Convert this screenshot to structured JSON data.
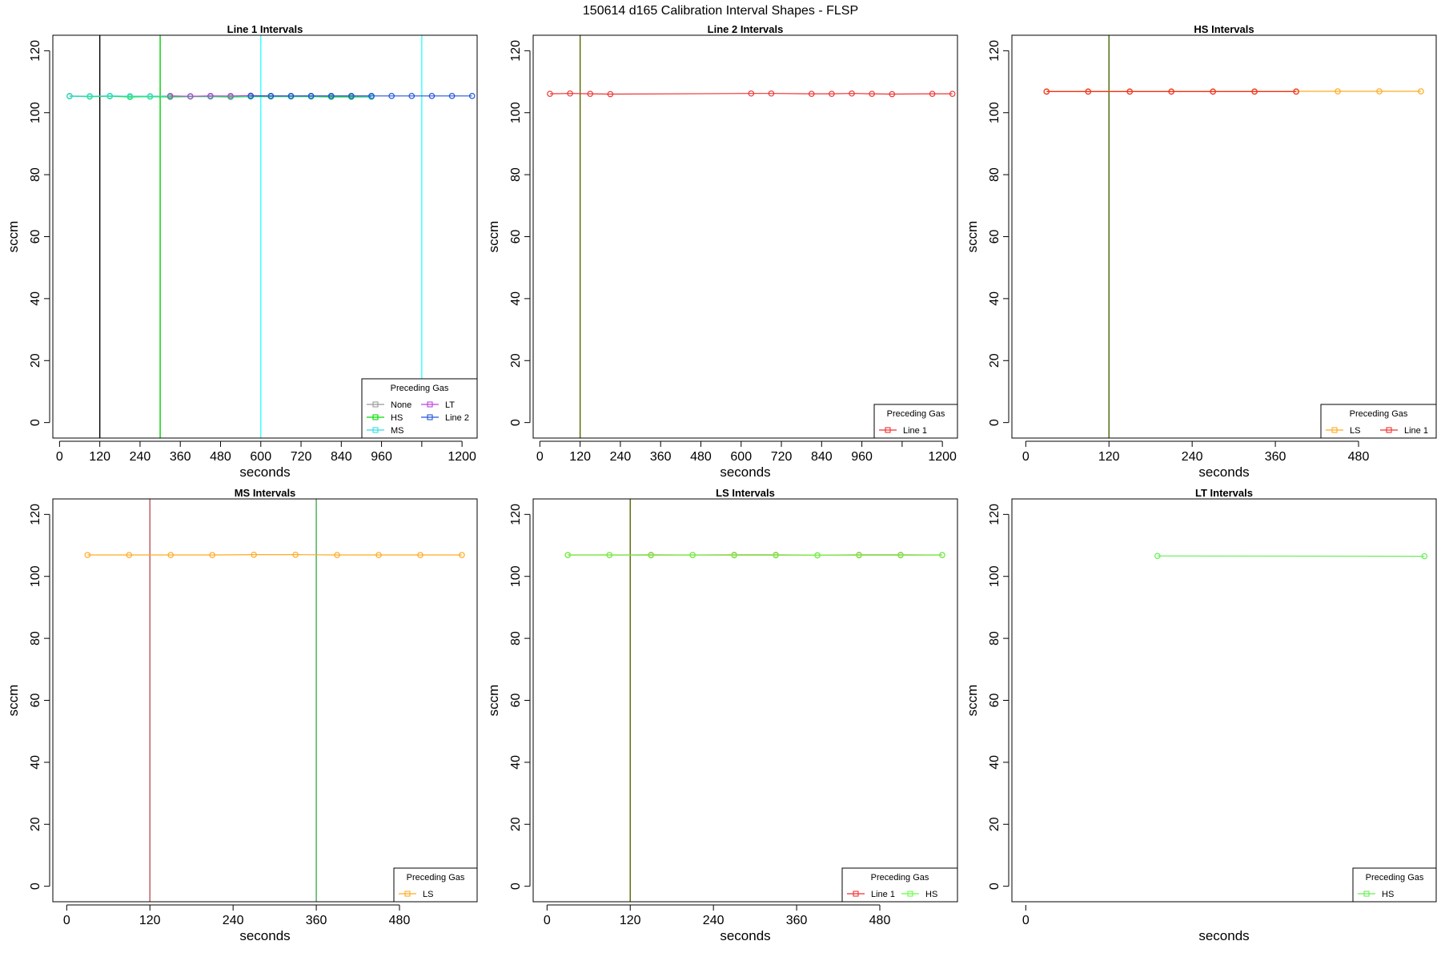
{
  "page": {
    "title": "150614   d165   Calibration Interval Shapes - FLSP"
  },
  "chart_data": [
    {
      "type": "line",
      "title": "Line 1 Intervals",
      "xlabel": "seconds",
      "ylabel": "sccm",
      "xlim": [
        -20,
        1245
      ],
      "ylim": [
        -5,
        125
      ],
      "xticks": [
        0,
        120,
        240,
        360,
        480,
        600,
        720,
        840,
        960,
        1080,
        1200
      ],
      "xtick_labels": [
        "0",
        "120",
        "240",
        "360",
        "480",
        "600",
        "720",
        "840",
        "960",
        "",
        "1200"
      ],
      "yticks": [
        0,
        20,
        40,
        60,
        80,
        100,
        120
      ],
      "vlines": [
        {
          "x": 120,
          "color": "#000000"
        },
        {
          "x": 300,
          "color": "#00cc00"
        },
        {
          "x": 600,
          "color": "#33ffff"
        },
        {
          "x": 1080,
          "color": "#33ffff"
        }
      ],
      "series": [
        {
          "name": "None",
          "color": "#999999",
          "x": [
            30,
            90,
            150,
            210,
            270,
            330,
            390,
            450,
            510,
            570,
            630,
            690,
            750,
            810,
            870,
            930
          ],
          "y": [
            105.4,
            105.3,
            105.4,
            105.3,
            105.3,
            105.4,
            105.3,
            105.4,
            105.3,
            105.4,
            105.4,
            105.3,
            105.4,
            105.3,
            105.3,
            105.3
          ]
        },
        {
          "name": "HS",
          "color": "#00dd00",
          "x": [
            30,
            90,
            150,
            210,
            270,
            330,
            390,
            450,
            510,
            570,
            630,
            690,
            750,
            810,
            870,
            930
          ],
          "y": [
            105.3,
            105.2,
            105.3,
            105.1,
            105.2,
            105.1,
            105.2,
            105.2,
            105.1,
            105.2,
            105.2,
            105.2,
            105.2,
            105.1,
            105.1,
            105.1
          ]
        },
        {
          "name": "MS",
          "color": "#33dddd",
          "x": [
            30,
            90,
            150,
            210,
            270,
            330,
            390,
            450,
            510,
            570,
            630,
            690,
            750,
            810,
            870,
            930
          ],
          "y": [
            105.3,
            105.3,
            105.4,
            105.3,
            105.3,
            105.3,
            105.3,
            105.3,
            105.3,
            105.3,
            105.3,
            105.3,
            105.3,
            105.3,
            105.3,
            105.2
          ]
        },
        {
          "name": "LT",
          "color": "#bb44dd",
          "x": [
            330,
            390,
            450,
            510,
            570,
            630,
            690,
            750,
            810,
            870,
            930
          ],
          "y": [
            105.4,
            105.3,
            105.4,
            105.4,
            105.5,
            105.4,
            105.4,
            105.4,
            105.4,
            105.4,
            105.4
          ]
        },
        {
          "name": "Line 2",
          "color": "#2255dd",
          "x": [
            570,
            630,
            690,
            750,
            810,
            870,
            930,
            990,
            1050,
            1110,
            1170,
            1230
          ],
          "y": [
            105.4,
            105.4,
            105.4,
            105.4,
            105.4,
            105.4,
            105.4,
            105.4,
            105.4,
            105.4,
            105.4,
            105.4
          ]
        }
      ],
      "legend": {
        "title": "Preceding Gas",
        "position": "bottom-right",
        "columns": 2,
        "marker": "square"
      }
    },
    {
      "type": "line",
      "title": "Line 2 Intervals",
      "xlabel": "seconds",
      "ylabel": "sccm",
      "xlim": [
        -20,
        1245
      ],
      "ylim": [
        -5,
        125
      ],
      "xticks": [
        0,
        120,
        240,
        360,
        480,
        600,
        720,
        840,
        960,
        1080,
        1200
      ],
      "xtick_labels": [
        "0",
        "120",
        "240",
        "360",
        "480",
        "600",
        "720",
        "840",
        "960",
        "",
        "1200"
      ],
      "yticks": [
        0,
        20,
        40,
        60,
        80,
        100,
        120
      ],
      "vlines": [
        {
          "x": 120,
          "color": "#556600"
        }
      ],
      "series": [
        {
          "name": "Line 1",
          "color": "#ee3333",
          "x": [
            30,
            90,
            150,
            210,
            630,
            690,
            810,
            870,
            930,
            990,
            1050,
            1170,
            1230
          ],
          "y": [
            106.1,
            106.2,
            106.1,
            106.0,
            106.2,
            106.2,
            106.1,
            106.1,
            106.2,
            106.1,
            106.0,
            106.1,
            106.1
          ]
        }
      ],
      "legend": {
        "title": "Preceding Gas",
        "position": "bottom-right",
        "columns": 1,
        "marker": "square"
      }
    },
    {
      "type": "line",
      "title": "HS Intervals",
      "xlabel": "seconds",
      "ylabel": "sccm",
      "xlim": [
        -20,
        592
      ],
      "ylim": [
        -5,
        125
      ],
      "xticks": [
        0,
        120,
        240,
        360,
        480
      ],
      "xtick_labels": [
        "0",
        "120",
        "240",
        "360",
        "480"
      ],
      "yticks": [
        0,
        20,
        40,
        60,
        80,
        100,
        120
      ],
      "vlines": [
        {
          "x": 120,
          "color": "#446600"
        }
      ],
      "series": [
        {
          "name": "LS",
          "color": "#ffaa22",
          "x": [
            30,
            90,
            150,
            210,
            270,
            330,
            390,
            450,
            510,
            570
          ],
          "y": [
            106.9,
            106.9,
            106.9,
            106.9,
            106.9,
            106.9,
            106.9,
            106.9,
            106.9,
            106.9
          ]
        },
        {
          "name": "Line 1",
          "color": "#ee3333",
          "x": [
            30,
            90,
            150,
            210,
            270,
            330,
            390
          ],
          "y": [
            106.8,
            106.8,
            106.8,
            106.8,
            106.8,
            106.8,
            106.8
          ]
        }
      ],
      "legend": {
        "title": "Preceding Gas",
        "position": "bottom-right",
        "columns": 2,
        "marker": "square"
      }
    },
    {
      "type": "line",
      "title": "MS Intervals",
      "xlabel": "seconds",
      "ylabel": "sccm",
      "xlim": [
        -20,
        592
      ],
      "ylim": [
        -5,
        125
      ],
      "xticks": [
        0,
        120,
        240,
        360,
        480
      ],
      "xtick_labels": [
        "0",
        "120",
        "240",
        "360",
        "480"
      ],
      "yticks": [
        0,
        20,
        40,
        60,
        80,
        100,
        120
      ],
      "vlines": [
        {
          "x": 120,
          "color": "#bb5555"
        },
        {
          "x": 360,
          "color": "#44aa55"
        }
      ],
      "series": [
        {
          "name": "LS",
          "color": "#ffaa22",
          "x": [
            30,
            90,
            150,
            210,
            270,
            330,
            390,
            450,
            510,
            570
          ],
          "y": [
            106.9,
            106.9,
            106.9,
            106.9,
            107.0,
            107.0,
            106.9,
            106.9,
            106.9,
            106.9
          ]
        }
      ],
      "legend": {
        "title": "Preceding Gas",
        "position": "bottom-right",
        "columns": 1,
        "marker": "square"
      }
    },
    {
      "type": "line",
      "title": "LS Intervals",
      "xlabel": "seconds",
      "ylabel": "sccm",
      "xlim": [
        -20,
        592
      ],
      "ylim": [
        -5,
        125
      ],
      "xticks": [
        0,
        120,
        240,
        360,
        480
      ],
      "xtick_labels": [
        "0",
        "120",
        "240",
        "360",
        "480"
      ],
      "yticks": [
        0,
        20,
        40,
        60,
        80,
        100,
        120
      ],
      "vlines": [
        {
          "x": 120,
          "color": "#556600"
        }
      ],
      "series": [
        {
          "name": "Line 1",
          "color": "#ee3333",
          "x": [
            30,
            90,
            150,
            210,
            270,
            330,
            390,
            450,
            510,
            570
          ],
          "y": [
            106.9,
            106.9,
            106.9,
            106.9,
            106.9,
            106.9,
            106.8,
            106.9,
            106.9,
            106.9
          ]
        },
        {
          "name": "HS",
          "color": "#66ff44",
          "x": [
            30,
            90,
            150,
            210,
            270,
            330,
            390,
            450,
            510,
            570
          ],
          "y": [
            106.9,
            106.9,
            106.8,
            106.9,
            106.8,
            106.8,
            106.8,
            106.8,
            106.8,
            106.9
          ]
        }
      ],
      "legend": {
        "title": "Preceding Gas",
        "position": "bottom-right",
        "columns": 2,
        "marker": "square"
      }
    },
    {
      "type": "line",
      "title": "LT Intervals",
      "xlabel": "seconds",
      "ylabel": "sccm",
      "xlim": [
        -20,
        592
      ],
      "ylim": [
        -5,
        125
      ],
      "xticks": [
        0
      ],
      "xtick_labels": [
        "0"
      ],
      "yticks": [
        0,
        20,
        40,
        60,
        80,
        100,
        120
      ],
      "vlines": [],
      "series": [
        {
          "name": "HS",
          "color": "#66ee55",
          "x": [
            190,
            575
          ],
          "y": [
            106.6,
            106.5
          ]
        }
      ],
      "legend": {
        "title": "Preceding Gas",
        "position": "bottom-right",
        "columns": 1,
        "marker": "square"
      }
    }
  ]
}
